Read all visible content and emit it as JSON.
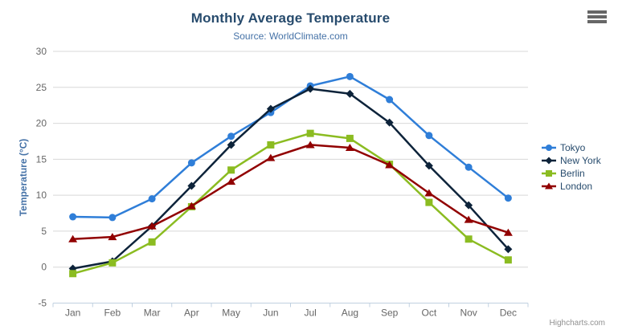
{
  "chart": {
    "title": "Monthly Average Temperature",
    "subtitle": "Source: WorldClimate.com",
    "credit": "Highcharts.com"
  },
  "chart_data": {
    "type": "line",
    "title": "Monthly Average Temperature",
    "subtitle": "Source: WorldClimate.com",
    "categories": [
      "Jan",
      "Feb",
      "Mar",
      "Apr",
      "May",
      "Jun",
      "Jul",
      "Aug",
      "Sep",
      "Oct",
      "Nov",
      "Dec"
    ],
    "xlabel": "",
    "ylabel": "Temperature (°C)",
    "ylim": [
      -5,
      30
    ],
    "tick_interval": 5,
    "grid": true,
    "legend_position": "right",
    "series": [
      {
        "name": "Tokyo",
        "color": "#2f7ed8",
        "marker": "circle",
        "values": [
          7.0,
          6.9,
          9.5,
          14.5,
          18.2,
          21.5,
          25.2,
          26.5,
          23.3,
          18.3,
          13.9,
          9.6
        ]
      },
      {
        "name": "New York",
        "color": "#0d233a",
        "marker": "diamond",
        "values": [
          -0.2,
          0.8,
          5.7,
          11.3,
          17.0,
          22.0,
          24.8,
          24.1,
          20.1,
          14.1,
          8.6,
          2.5
        ]
      },
      {
        "name": "Berlin",
        "color": "#8bbc21",
        "marker": "square",
        "values": [
          -0.9,
          0.6,
          3.5,
          8.4,
          13.5,
          17.0,
          18.6,
          17.9,
          14.3,
          9.0,
          3.9,
          1.0
        ]
      },
      {
        "name": "London",
        "color": "#910000",
        "marker": "triangle",
        "values": [
          3.9,
          4.2,
          5.7,
          8.5,
          11.9,
          15.2,
          17.0,
          16.6,
          14.2,
          10.3,
          6.6,
          4.8
        ]
      }
    ]
  },
  "style_colors": {
    "title": "#274b6d",
    "subtitle": "#4572A7",
    "yaxis_title": "#4572A7",
    "axis_label": "#666666",
    "axis_line": "#C0D0E0",
    "gridline": "#D8D8D8",
    "legend_text": "#274b6d",
    "credit": "#909090",
    "burger_icon": "#666666",
    "background": "#ffffff"
  }
}
